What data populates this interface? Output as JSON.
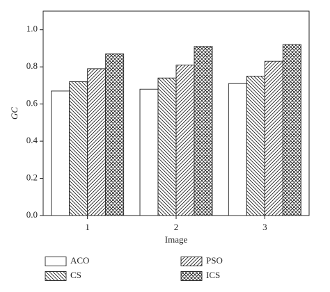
{
  "chart_data": {
    "type": "bar",
    "x_label": "Image",
    "y_label": "GC",
    "categories": [
      "1",
      "2",
      "3"
    ],
    "series": [
      {
        "name": "ACO",
        "hatch": "none",
        "values": [
          0.67,
          0.68,
          0.71
        ]
      },
      {
        "name": "CS",
        "hatch": "back",
        "values": [
          0.72,
          0.74,
          0.75
        ]
      },
      {
        "name": "PSO",
        "hatch": "forward",
        "values": [
          0.79,
          0.81,
          0.83
        ]
      },
      {
        "name": "ICS",
        "hatch": "cross",
        "values": [
          0.87,
          0.91,
          0.92
        ]
      }
    ],
    "ylim": [
      0,
      1.1
    ],
    "yticks": [
      {
        "value": 0,
        "label": "0.0"
      },
      0.2,
      0.4,
      0.6,
      0.8,
      {
        "value": 1,
        "label": "1.0"
      }
    ]
  }
}
